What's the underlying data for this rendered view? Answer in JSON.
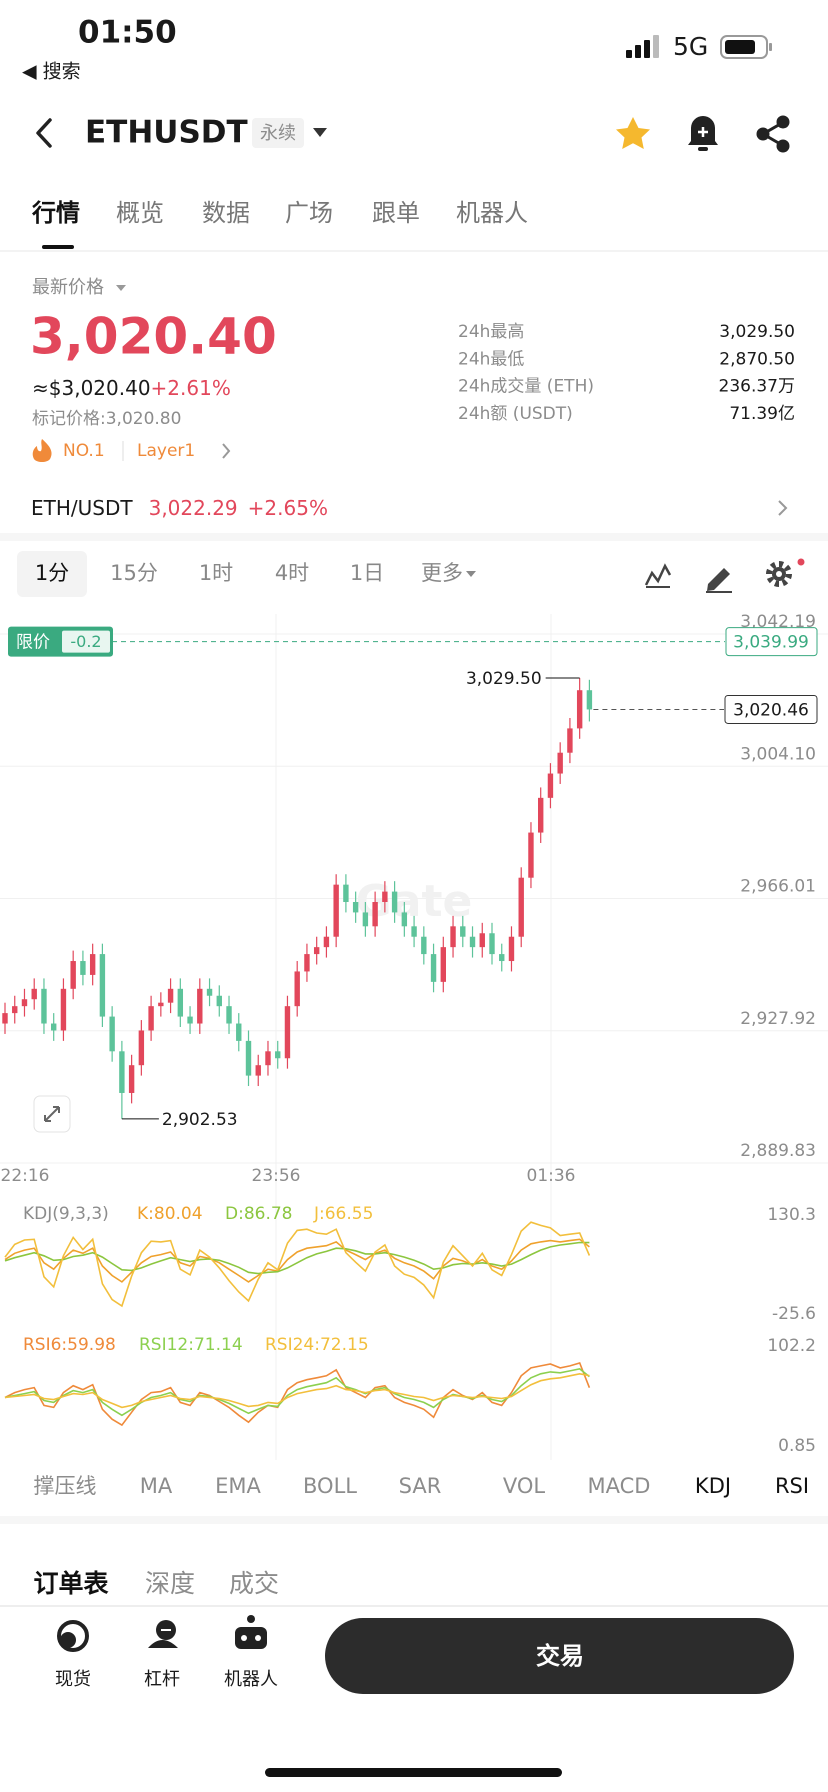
{
  "status_bar": {
    "time": "01:50",
    "back_app": "◀ 搜索",
    "network": "5G"
  },
  "header": {
    "symbol": "ETHUSDT",
    "contract_type": "永续"
  },
  "tabs": {
    "items": [
      "行情",
      "概览",
      "数据",
      "广场",
      "跟单",
      "机器人"
    ],
    "selected": 0
  },
  "market": {
    "price_label": "最新价格",
    "price": "3,020.40",
    "usd_price": "≈$3,020.40",
    "change": "+2.61%",
    "mark_price": "标记价格:3,020.80",
    "rank": "NO.1",
    "sector": "Layer1",
    "stats": [
      [
        "24h最高",
        "3,029.50"
      ],
      [
        "24h最低",
        "2,870.50"
      ],
      [
        "24h成交量 (ETH)",
        "236.37万"
      ],
      [
        "24h额 (USDT)",
        "71.39亿"
      ]
    ]
  },
  "spot_pair": {
    "pair": "ETH/USDT",
    "price": "3,022.29",
    "change": "+2.65%"
  },
  "intervals": {
    "items": [
      "1分",
      "15分",
      "1时",
      "4时",
      "1日",
      "更多"
    ],
    "selected": 0
  },
  "chart_data": [
    {
      "type": "candlestick",
      "watermark": "Gate",
      "up_color": "#e2475b",
      "down_color": "#5dc39a",
      "grid": true,
      "ylim": [
        2889.83,
        3042.19
      ],
      "yticks": [
        {
          "value": 2889.83,
          "label": "2,889.83"
        },
        {
          "value": 2927.92,
          "label": "2,927.92"
        },
        {
          "value": 2966.01,
          "label": "2,966.01"
        },
        {
          "value": 3004.1,
          "label": "3,004.10"
        },
        {
          "value": 3042.19,
          "label": "3,042.19"
        }
      ],
      "candles": {
        "open": [
          2930,
          2933,
          2935,
          2937,
          2940,
          2930,
          2928,
          2940,
          2948,
          2944,
          2950,
          2932,
          2922,
          2910,
          2918,
          2928,
          2935,
          2936,
          2940,
          2932,
          2930,
          2940,
          2938,
          2935,
          2930,
          2925,
          2915,
          2918,
          2922,
          2920,
          2935,
          2945,
          2950,
          2952,
          2955,
          2970,
          2965,
          2962,
          2958,
          2965,
          2968,
          2962,
          2958,
          2955,
          2950,
          2942,
          2952,
          2958,
          2955,
          2952,
          2956,
          2950,
          2948,
          2955,
          2972,
          2985,
          2995,
          3002,
          3008,
          3015,
          3026
        ],
        "high": [
          2936,
          2938,
          2940,
          2943,
          2943,
          2933,
          2943,
          2951,
          2951,
          2953,
          2953,
          2935,
          2925,
          2921,
          2931,
          2938,
          2939,
          2943,
          2943,
          2935,
          2943,
          2943,
          2941,
          2938,
          2933,
          2928,
          2921,
          2925,
          2925,
          2938,
          2948,
          2953,
          2955,
          2958,
          2973,
          2973,
          2968,
          2965,
          2968,
          2971,
          2971,
          2965,
          2961,
          2958,
          2953,
          2955,
          2961,
          2961,
          2958,
          2959,
          2959,
          2953,
          2958,
          2975,
          2988,
          2998,
          3005,
          3011,
          3018,
          3029.5,
          3029
        ],
        "low": [
          2927,
          2930,
          2932,
          2934,
          2927,
          2925,
          2925,
          2937,
          2941,
          2941,
          2929,
          2919,
          2902.53,
          2907,
          2915,
          2925,
          2932,
          2933,
          2929,
          2927,
          2927,
          2935,
          2932,
          2927,
          2922,
          2912,
          2912,
          2915,
          2917,
          2917,
          2932,
          2942,
          2947,
          2949,
          2952,
          2962,
          2959,
          2955,
          2955,
          2962,
          2959,
          2955,
          2952,
          2947,
          2939,
          2939,
          2949,
          2952,
          2949,
          2949,
          2947,
          2945,
          2945,
          2952,
          2969,
          2982,
          2992,
          2999,
          3005,
          3012,
          3017
        ],
        "close": [
          2933,
          2935,
          2937,
          2940,
          2930,
          2928,
          2940,
          2948,
          2944,
          2950,
          2932,
          2922,
          2910,
          2918,
          2928,
          2935,
          2936,
          2940,
          2932,
          2930,
          2940,
          2938,
          2935,
          2930,
          2925,
          2915,
          2918,
          2922,
          2920,
          2935,
          2945,
          2950,
          2952,
          2955,
          2970,
          2965,
          2962,
          2958,
          2965,
          2968,
          2962,
          2958,
          2955,
          2950,
          2942,
          2952,
          2958,
          2955,
          2952,
          2956,
          2950,
          2948,
          2955,
          2972,
          2985,
          2995,
          3002,
          3008,
          3015,
          3026,
          3020.46
        ]
      },
      "high_label": {
        "value": 3029.5,
        "label": "3,029.50"
      },
      "low_label": {
        "value": 2902.53,
        "label": "2,902.53"
      },
      "last_price": {
        "value": 3020.46,
        "label": "3,020.46"
      },
      "limit_order": {
        "tag": "限价",
        "offset": -0.2,
        "value": 3039.99,
        "label": "3,039.99"
      }
    },
    {
      "type": "line",
      "title": "KDJ(9,3,3)",
      "ylim": [
        -25.6,
        130.3
      ],
      "yticks": [
        -25.6,
        130.3
      ],
      "series": [
        {
          "name": "K:80.04",
          "color": "#efa12c",
          "values": [
            60,
            70,
            75,
            78,
            55,
            45,
            62,
            75,
            70,
            78,
            50,
            35,
            25,
            40,
            55,
            65,
            68,
            72,
            55,
            50,
            65,
            62,
            55,
            45,
            35,
            25,
            35,
            45,
            42,
            60,
            72,
            78,
            80,
            82,
            88,
            75,
            68,
            60,
            70,
            75,
            62,
            55,
            50,
            42,
            30,
            50,
            62,
            58,
            52,
            60,
            50,
            45,
            58,
            75,
            85,
            88,
            90,
            88,
            90,
            92,
            80.04
          ]
        },
        {
          "name": "D:86.78",
          "color": "#8cc63f",
          "values": [
            58,
            63,
            67,
            71,
            66,
            59,
            60,
            65,
            67,
            71,
            64,
            54,
            44,
            43,
            47,
            53,
            58,
            63,
            60,
            57,
            60,
            61,
            59,
            54,
            48,
            40,
            38,
            40,
            41,
            47,
            55,
            63,
            69,
            73,
            78,
            77,
            74,
            69,
            69,
            71,
            68,
            64,
            59,
            53,
            45,
            47,
            52,
            54,
            53,
            55,
            53,
            50,
            53,
            60,
            68,
            75,
            80,
            83,
            85,
            87,
            86.78
          ]
        },
        {
          "name": "J:66.55",
          "color": "#f2bf3c",
          "values": [
            64,
            84,
            91,
            92,
            33,
            17,
            66,
            95,
            76,
            92,
            22,
            -3,
            -13,
            34,
            71,
            89,
            88,
            90,
            45,
            36,
            75,
            64,
            47,
            27,
            9,
            -5,
            29,
            55,
            44,
            86,
            106,
            108,
            102,
            100,
            108,
            71,
            56,
            42,
            72,
            83,
            50,
            37,
            32,
            20,
            0,
            56,
            82,
            66,
            50,
            70,
            44,
            35,
            68,
            105,
            119,
            114,
            110,
            98,
            100,
            102,
            66.55
          ]
        }
      ]
    },
    {
      "type": "line",
      "ylim": [
        0.85,
        102.2
      ],
      "yticks": [
        0.85,
        102.2
      ],
      "series": [
        {
          "name": "RSI6:59.98",
          "color": "#ef8a3a",
          "values": [
            50,
            55,
            58,
            60,
            42,
            40,
            55,
            62,
            58,
            63,
            38,
            28,
            22,
            35,
            48,
            55,
            56,
            60,
            45,
            42,
            55,
            52,
            46,
            40,
            32,
            25,
            35,
            42,
            40,
            58,
            65,
            68,
            70,
            72,
            78,
            60,
            55,
            50,
            60,
            62,
            50,
            45,
            42,
            38,
            30,
            50,
            58,
            52,
            48,
            55,
            45,
            42,
            55,
            72,
            80,
            82,
            84,
            80,
            82,
            85,
            59.98
          ]
        },
        {
          "name": "RSI12:71.14",
          "color": "#8cd04f",
          "values": [
            50,
            52,
            54,
            56,
            47,
            45,
            52,
            57,
            55,
            58,
            45,
            38,
            32,
            38,
            45,
            50,
            52,
            55,
            48,
            46,
            52,
            51,
            48,
            44,
            39,
            34,
            38,
            42,
            41,
            52,
            58,
            61,
            63,
            65,
            70,
            61,
            58,
            54,
            58,
            60,
            54,
            50,
            48,
            45,
            40,
            48,
            53,
            51,
            49,
            52,
            48,
            46,
            52,
            62,
            70,
            74,
            76,
            75,
            77,
            79,
            71.14
          ]
        },
        {
          "name": "RSI24:72.15",
          "color": "#f2bf3c",
          "values": [
            50,
            51,
            52,
            53,
            49,
            48,
            51,
            54,
            53,
            55,
            48,
            44,
            40,
            42,
            46,
            48,
            50,
            52,
            49,
            48,
            51,
            50,
            49,
            47,
            44,
            41,
            42,
            45,
            44,
            50,
            54,
            56,
            58,
            59,
            62,
            58,
            57,
            55,
            57,
            58,
            55,
            53,
            51,
            50,
            47,
            50,
            52,
            51,
            50,
            51,
            50,
            49,
            51,
            57,
            63,
            67,
            69,
            70,
            72,
            74,
            72.15
          ]
        }
      ]
    }
  ],
  "time_labels": [
    "22:16",
    "23:56",
    "01:36"
  ],
  "indicator_tabs": {
    "items": [
      "撑压线",
      "MA",
      "EMA",
      "BOLL",
      "SAR",
      "VOL",
      "MACD",
      "KDJ",
      "RSI"
    ],
    "active": [
      7,
      8
    ]
  },
  "order_tabs": {
    "items": [
      "订单表",
      "深度",
      "成交"
    ],
    "selected": 0
  },
  "bottom_nav": {
    "items": [
      "现货",
      "杠杆",
      "机器人"
    ],
    "action": "交易"
  }
}
